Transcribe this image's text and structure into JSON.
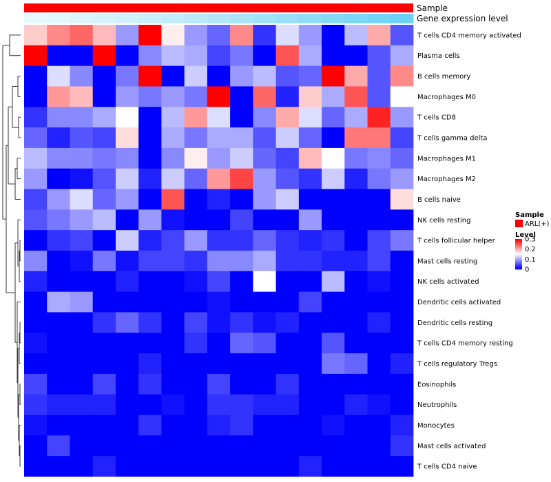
{
  "chart_data": {
    "type": "heatmap",
    "annotations": {
      "sample_label": "Sample",
      "gene_label": "Gene expression level"
    },
    "rows": [
      "T cells CD4 memory activated",
      "Plasma cells",
      "B cells memory",
      "Macrophages M0",
      "T cells CD8",
      "T cells gamma delta",
      "Macrophages M1",
      "Macrophages M2",
      "B cells naive",
      "NK cells resting",
      "T cells follicular helper",
      "Mast cells resting",
      "NK cells activated",
      "Dendritic cells activated",
      "Dendritic cells resting",
      "T cells CD4 memory resting",
      "T cells regulatory  Tregs",
      "Eosinophils",
      "Neutrophils",
      "Monocytes",
      "Mast cells activated",
      "T cells CD4 naive"
    ],
    "values": [
      [
        0.18,
        0.22,
        0.24,
        0.19,
        0.09,
        0.3,
        0.16,
        0.09,
        0.06,
        0.22,
        0.03,
        0.13,
        0.09,
        0.0,
        0.11,
        0.2,
        0.05
      ],
      [
        0.3,
        0.0,
        0.0,
        0.3,
        0.0,
        0.08,
        0.11,
        0.1,
        0.04,
        0.07,
        0.0,
        0.25,
        0.1,
        0.0,
        0.0,
        0.05,
        0.1
      ],
      [
        0.0,
        0.13,
        0.08,
        0.0,
        0.07,
        0.3,
        0.0,
        0.12,
        0.0,
        0.09,
        0.11,
        0.05,
        0.06,
        0.3,
        0.2,
        0.05,
        0.22
      ],
      [
        0.0,
        0.21,
        0.19,
        0.0,
        0.09,
        0.07,
        0.09,
        0.07,
        0.3,
        0.0,
        0.24,
        0.02,
        0.18,
        0.1,
        0.25,
        0.05,
        0.15
      ],
      [
        0.03,
        0.08,
        0.08,
        0.1,
        0.15,
        0.0,
        0.11,
        0.21,
        0.13,
        0.0,
        0.08,
        0.2,
        0.13,
        0.06,
        0.1,
        0.28,
        0.09
      ],
      [
        0.06,
        0.02,
        0.05,
        0.04,
        0.17,
        0.0,
        0.1,
        0.07,
        0.1,
        0.1,
        0.05,
        0.12,
        0.06,
        0.0,
        0.23,
        0.23,
        0.04
      ],
      [
        0.11,
        0.08,
        0.08,
        0.07,
        0.08,
        0.0,
        0.08,
        0.16,
        0.09,
        0.12,
        0.06,
        0.04,
        0.19,
        0.15,
        0.07,
        0.08,
        0.06
      ],
      [
        0.09,
        0.0,
        0.01,
        0.05,
        0.12,
        0.02,
        0.12,
        0.06,
        0.21,
        0.26,
        0.09,
        0.05,
        0.03,
        0.12,
        0.02,
        0.07,
        0.09
      ],
      [
        0.04,
        0.09,
        0.13,
        0.06,
        0.09,
        0.0,
        0.25,
        0.0,
        0.02,
        0.0,
        0.09,
        0.12,
        0.0,
        0.0,
        0.0,
        0.0,
        0.17
      ],
      [
        0.05,
        0.07,
        0.09,
        0.11,
        0.0,
        0.09,
        0.01,
        0.0,
        0.0,
        0.04,
        0.0,
        0.0,
        0.09,
        0.0,
        0.0,
        0.0,
        0.0
      ],
      [
        0.0,
        0.03,
        0.04,
        0.0,
        0.12,
        0.02,
        0.04,
        0.09,
        0.03,
        0.03,
        0.06,
        0.03,
        0.02,
        0.03,
        0.0,
        0.04,
        0.07
      ],
      [
        0.08,
        0.0,
        0.01,
        0.07,
        0.01,
        0.04,
        0.04,
        0.03,
        0.08,
        0.08,
        0.1,
        0.03,
        0.03,
        0.02,
        0.02,
        0.04,
        0.0
      ],
      [
        0.02,
        0.0,
        0.0,
        0.0,
        0.02,
        0.0,
        0.0,
        0.01,
        0.04,
        0.0,
        0.15,
        0.0,
        0.0,
        0.11,
        0.0,
        0.01,
        0.0
      ],
      [
        0.0,
        0.1,
        0.09,
        0.0,
        0.0,
        0.0,
        0.0,
        0.0,
        0.01,
        0.0,
        0.0,
        0.0,
        0.04,
        0.0,
        0.0,
        0.0,
        0.0
      ],
      [
        0.0,
        0.0,
        0.0,
        0.03,
        0.06,
        0.03,
        0.0,
        0.04,
        0.01,
        0.03,
        0.01,
        0.02,
        0.0,
        0.0,
        0.0,
        0.02,
        0.0
      ],
      [
        0.01,
        0.0,
        0.0,
        0.0,
        0.0,
        0.0,
        0.0,
        0.03,
        0.0,
        0.06,
        0.05,
        0.0,
        0.0,
        0.05,
        0.0,
        0.0,
        0.0
      ],
      [
        0.0,
        0.0,
        0.0,
        0.0,
        0.0,
        0.02,
        0.0,
        0.0,
        0.0,
        0.0,
        0.0,
        0.0,
        0.0,
        0.07,
        0.06,
        0.0,
        0.02
      ],
      [
        0.04,
        0.0,
        0.0,
        0.04,
        0.0,
        0.03,
        0.0,
        0.0,
        0.04,
        0.0,
        0.0,
        0.03,
        0.0,
        0.0,
        0.0,
        0.0,
        0.0
      ],
      [
        0.03,
        0.02,
        0.02,
        0.02,
        0.0,
        0.0,
        0.01,
        0.0,
        0.03,
        0.03,
        0.02,
        0.02,
        0.0,
        0.0,
        0.02,
        0.01,
        0.0
      ],
      [
        0.01,
        0.0,
        0.0,
        0.0,
        0.0,
        0.03,
        0.0,
        0.0,
        0.02,
        0.03,
        0.0,
        0.0,
        0.0,
        0.01,
        0.0,
        0.0,
        0.02
      ],
      [
        0.0,
        0.04,
        0.0,
        0.0,
        0.0,
        0.0,
        0.0,
        0.0,
        0.0,
        0.0,
        0.0,
        0.0,
        0.0,
        0.0,
        0.0,
        0.0,
        0.03
      ],
      [
        0.0,
        0.0,
        0.0,
        0.02,
        0.0,
        0.0,
        0.0,
        0.0,
        0.0,
        0.0,
        0.0,
        0.0,
        0.02,
        0.0,
        0.0,
        0.0,
        0.0
      ]
    ],
    "gene_expression": [
      0.05,
      0.08,
      0.12,
      0.15,
      0.18,
      0.22,
      0.25,
      0.3,
      0.35,
      0.4,
      0.45,
      0.5,
      0.55,
      0.6,
      0.65,
      0.7,
      0.75
    ],
    "legend": {
      "sample_title": "Sample",
      "sample_items": [
        {
          "label": "ARL(+)",
          "color": "#ff0000"
        }
      ],
      "level_title": "Level",
      "level_ticks": [
        "0.3",
        "0.2",
        "0.1",
        "0"
      ],
      "range": [
        0,
        0.3
      ]
    },
    "colors": {
      "low": "#0000ff",
      "mid": "#ffffff",
      "high": "#ff0000",
      "sample_bar": "#ff0000",
      "gene_low": "#f0fbff",
      "gene_high": "#3ec3f2"
    }
  }
}
